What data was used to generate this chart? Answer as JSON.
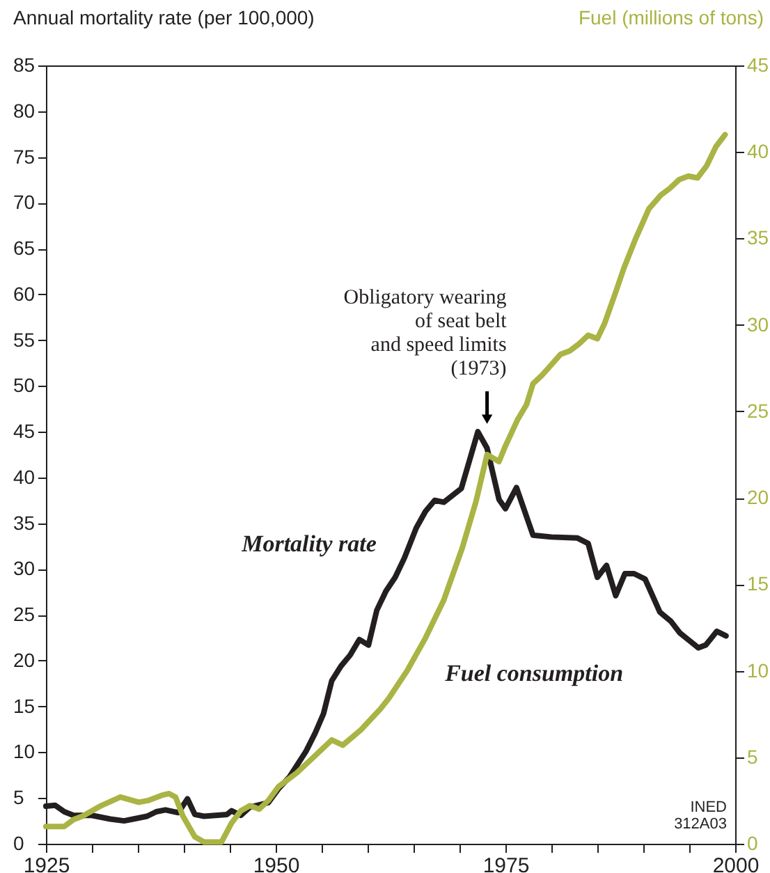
{
  "chart_data": {
    "type": "line",
    "xlim": [
      1925,
      2000
    ],
    "xticks": [
      1925,
      {
        "value": 1930,
        "label": null
      },
      {
        "value": 1935,
        "label": null
      },
      {
        "value": 1940,
        "label": null
      },
      {
        "value": 1945,
        "label": null
      },
      1950,
      {
        "value": 1955,
        "label": null
      },
      {
        "value": 1960,
        "label": null
      },
      {
        "value": 1965,
        "label": null
      },
      {
        "value": 1970,
        "label": null
      },
      1975,
      {
        "value": 1980,
        "label": null
      },
      {
        "value": 1985,
        "label": null
      },
      {
        "value": 1990,
        "label": null
      },
      {
        "value": 1995,
        "label": null
      },
      2000
    ],
    "ylabel": "Annual mortality rate (per 100,000)",
    "ylim": [
      0,
      85
    ],
    "yticks": [
      0,
      5,
      10,
      15,
      20,
      25,
      30,
      35,
      40,
      45,
      50,
      55,
      60,
      65,
      70,
      75,
      80,
      85
    ],
    "y2label": "Fuel (millions of tons)",
    "y2lim": [
      0,
      45
    ],
    "y2ticks": [
      0,
      5,
      10,
      15,
      20,
      25,
      30,
      35,
      40,
      45
    ],
    "grid": false,
    "marker": "none",
    "line_style": "solid",
    "series": [
      {
        "name": "Mortality rate",
        "color": "#231f20",
        "x": [
          1925,
          1926,
          1927,
          1928,
          1930,
          1932,
          1933.5,
          1934.5,
          1936,
          1937,
          1938,
          1939.4,
          1940.4,
          1941.2,
          1942.2,
          1944.7,
          1945.2,
          1946.2,
          1947.2,
          1949.2,
          1950.3,
          1951.5,
          1953.3,
          1954.3,
          1955.2,
          1956.1,
          1957.1,
          1958.1,
          1959.1,
          1960.1,
          1961,
          1962,
          1963,
          1964,
          1965.3,
          1966.3,
          1967.3,
          1968.3,
          1970.2,
          1972,
          1973,
          1974.3,
          1975,
          1976.2,
          1978,
          1980,
          1982.8,
          1984,
          1985,
          1986,
          1987,
          1988,
          1989,
          1990.2,
          1991.8,
          1993,
          1994,
          1996,
          1996.8,
          1998,
          1999
        ],
        "values": [
          4.1,
          4.2,
          3.5,
          3.1,
          3.1,
          2.7,
          2.5,
          2.7,
          3.0,
          3.5,
          3.7,
          3.4,
          4.9,
          3.2,
          3.0,
          3.2,
          3.6,
          3.1,
          4.0,
          4.5,
          6.0,
          7.3,
          10.1,
          12.1,
          14.2,
          17.8,
          19.4,
          20.6,
          22.3,
          21.7,
          25.5,
          27.6,
          29.1,
          31.2,
          34.5,
          36.3,
          37.5,
          37.3,
          38.8,
          45.0,
          43.2,
          37.6,
          36.6,
          38.9,
          33.7,
          33.5,
          33.4,
          32.8,
          29.1,
          30.4,
          27.1,
          29.5,
          29.5,
          28.9,
          25.3,
          24.3,
          23.0,
          21.4,
          21.7,
          23.2,
          22.7
        ]
      },
      {
        "name": "Fuel consumption",
        "color": "#a9b444",
        "axis": "y2",
        "x": [
          1925,
          1927,
          1928,
          1929,
          1931,
          1933.1,
          1935.1,
          1936.1,
          1937.6,
          1938.4,
          1939.1,
          1939.9,
          1941.2,
          1942.2,
          1944.1,
          1945.2,
          1946.2,
          1947.2,
          1948.2,
          1949.2,
          1950.3,
          1952.3,
          1954.3,
          1956.1,
          1957.3,
          1959.3,
          1961.4,
          1962.3,
          1964.3,
          1966.3,
          1968.3,
          1970.3,
          1971.8,
          1973,
          1974.3,
          1975,
          1976.3,
          1977.3,
          1978,
          1979,
          1980,
          1981,
          1982,
          1983,
          1984,
          1985,
          1985.8,
          1987,
          1987.9,
          1989.1,
          1990.6,
          1991.9,
          1992.9,
          1993.9,
          1994.9,
          1995.9,
          1996.9,
          1997.9,
          1998.9
        ],
        "values": [
          1.0,
          1.0,
          1.4,
          1.6,
          2.2,
          2.7,
          2.4,
          2.5,
          2.8,
          2.9,
          2.7,
          1.6,
          0.4,
          0.1,
          0.1,
          1.2,
          1.9,
          2.2,
          2.0,
          2.5,
          3.3,
          4.1,
          5.1,
          6.0,
          5.7,
          6.6,
          7.8,
          8.4,
          10.0,
          11.9,
          14.1,
          17.1,
          19.8,
          22.5,
          22.1,
          23.0,
          24.5,
          25.4,
          26.6,
          27.1,
          27.7,
          28.3,
          28.5,
          28.9,
          29.4,
          29.2,
          30.1,
          31.9,
          33.3,
          34.9,
          36.7,
          37.5,
          37.9,
          38.4,
          38.6,
          38.5,
          39.2,
          40.3,
          41.0
        ]
      }
    ],
    "annotations": [
      {
        "text": "Obligatory wearing\nof seat belt\nand speed limits\n(1973)",
        "x": 1973,
        "y": 45
      },
      "INED\n312A03"
    ]
  }
}
